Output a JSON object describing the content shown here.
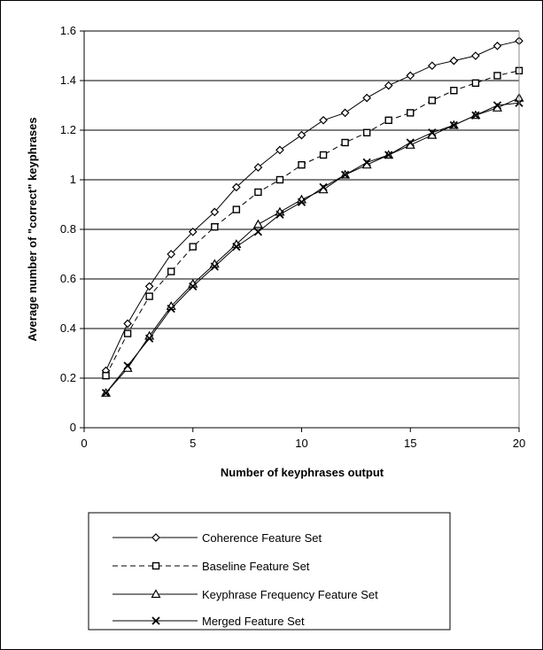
{
  "chart_data": {
    "type": "line",
    "title": "",
    "xlabel": "Number of keyphrases output",
    "ylabel": "Average number of \"correct\" keyphrases",
    "xlim": [
      0,
      20
    ],
    "ylim": [
      0,
      1.6
    ],
    "x_ticks": [
      "0",
      "5",
      "10",
      "15",
      "20"
    ],
    "y_ticks": [
      "0",
      "0.2",
      "0.4",
      "0.6",
      "0.8",
      "1",
      "1.2",
      "1.4",
      "1.6"
    ],
    "grid": "horizontal",
    "legend_placement": "bottom",
    "x": [
      1,
      2,
      3,
      4,
      5,
      6,
      7,
      8,
      9,
      10,
      11,
      12,
      13,
      14,
      15,
      16,
      17,
      18,
      19,
      20
    ],
    "series": [
      {
        "name": "Coherence Feature Set",
        "marker": "diamond",
        "dash": "solid",
        "values": [
          0.23,
          0.42,
          0.57,
          0.7,
          0.79,
          0.87,
          0.97,
          1.05,
          1.12,
          1.18,
          1.24,
          1.27,
          1.33,
          1.38,
          1.42,
          1.46,
          1.48,
          1.5,
          1.54,
          1.56
        ]
      },
      {
        "name": "Baseline Feature Set",
        "marker": "square",
        "dash": "dashed",
        "values": [
          0.21,
          0.38,
          0.53,
          0.63,
          0.73,
          0.81,
          0.88,
          0.95,
          1.0,
          1.06,
          1.1,
          1.15,
          1.19,
          1.24,
          1.27,
          1.32,
          1.36,
          1.39,
          1.42,
          1.44
        ]
      },
      {
        "name": "Keyphrase Frequency Feature Set",
        "marker": "triangle",
        "dash": "solid",
        "values": [
          0.14,
          0.24,
          0.37,
          0.49,
          0.58,
          0.66,
          0.74,
          0.82,
          0.87,
          0.92,
          0.96,
          1.02,
          1.06,
          1.1,
          1.14,
          1.18,
          1.22,
          1.26,
          1.29,
          1.33
        ]
      },
      {
        "name": "Merged Feature Set",
        "marker": "x",
        "dash": "solid",
        "values": [
          0.14,
          0.25,
          0.36,
          0.48,
          0.57,
          0.65,
          0.73,
          0.79,
          0.86,
          0.91,
          0.97,
          1.02,
          1.07,
          1.1,
          1.15,
          1.19,
          1.22,
          1.26,
          1.3,
          1.31
        ]
      }
    ]
  }
}
